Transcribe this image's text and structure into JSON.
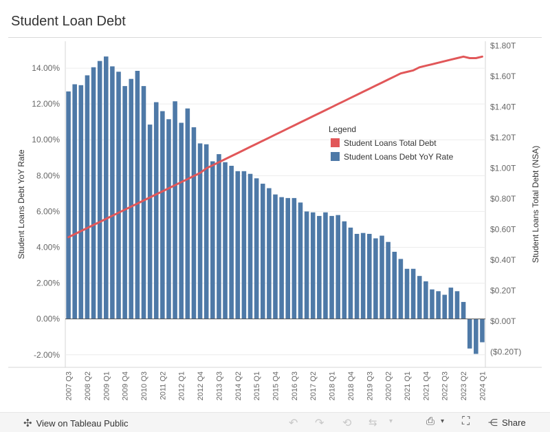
{
  "page": {
    "title": "Student Loan Debt"
  },
  "chart_data": {
    "type": "bar",
    "title": "Student Loan Debt",
    "categories": [
      "2007 Q3",
      "2007 Q4",
      "2008 Q1",
      "2008 Q2",
      "2008 Q3",
      "2008 Q4",
      "2009 Q1",
      "2009 Q2",
      "2009 Q3",
      "2009 Q4",
      "2010 Q1",
      "2010 Q2",
      "2010 Q3",
      "2010 Q4",
      "2011 Q1",
      "2011 Q2",
      "2011 Q3",
      "2011 Q4",
      "2012 Q1",
      "2012 Q2",
      "2012 Q3",
      "2012 Q4",
      "2013 Q1",
      "2013 Q2",
      "2013 Q3",
      "2013 Q4",
      "2014 Q1",
      "2014 Q2",
      "2014 Q3",
      "2014 Q4",
      "2015 Q1",
      "2015 Q2",
      "2015 Q3",
      "2015 Q4",
      "2016 Q1",
      "2016 Q2",
      "2016 Q3",
      "2016 Q4",
      "2017 Q1",
      "2017 Q2",
      "2017 Q3",
      "2017 Q4",
      "2018 Q1",
      "2018 Q2",
      "2018 Q3",
      "2018 Q4",
      "2019 Q1",
      "2019 Q2",
      "2019 Q3",
      "2019 Q4",
      "2020 Q1",
      "2020 Q2",
      "2020 Q3",
      "2020 Q4",
      "2021 Q1",
      "2021 Q2",
      "2021 Q3",
      "2021 Q4",
      "2022 Q1",
      "2022 Q2",
      "2022 Q3",
      "2022 Q4",
      "2023 Q1",
      "2023 Q2",
      "2023 Q3",
      "2023 Q4",
      "2024 Q1"
    ],
    "x_tick_labels": [
      "2007 Q3",
      "2008 Q2",
      "2009 Q1",
      "2009 Q4",
      "2010 Q3",
      "2011 Q2",
      "2012 Q1",
      "2012 Q4",
      "2013 Q3",
      "2014 Q2",
      "2015 Q1",
      "2015 Q4",
      "2016 Q3",
      "2017 Q2",
      "2018 Q1",
      "2018 Q4",
      "2019 Q3",
      "2020 Q2",
      "2021 Q1",
      "2021 Q4",
      "2022 Q3",
      "2023 Q2",
      "2024 Q1"
    ],
    "series": [
      {
        "name": "Student Loans Debt YoY Rate",
        "type": "bar",
        "axis": "left",
        "color": "#4e79a7",
        "values": [
          12.7,
          13.1,
          13.05,
          13.6,
          14.05,
          14.4,
          14.65,
          14.1,
          13.8,
          13.0,
          13.4,
          13.85,
          13.0,
          10.85,
          12.1,
          11.6,
          11.15,
          12.15,
          10.95,
          11.75,
          10.7,
          9.8,
          9.75,
          8.8,
          9.2,
          8.75,
          8.55,
          8.25,
          8.25,
          8.1,
          7.85,
          7.55,
          7.3,
          6.95,
          6.8,
          6.75,
          6.75,
          6.5,
          6.0,
          5.95,
          5.75,
          5.95,
          5.75,
          5.8,
          5.45,
          5.1,
          4.75,
          4.8,
          4.75,
          4.5,
          4.65,
          4.3,
          3.75,
          3.35,
          2.8,
          2.8,
          2.4,
          2.1,
          1.65,
          1.55,
          1.35,
          1.75,
          1.55,
          0.95,
          -1.65,
          -1.95,
          -1.3
        ]
      },
      {
        "name": "Student Loans Total Debt",
        "type": "line",
        "axis": "right",
        "color": "#e15759",
        "values": [
          0.55,
          0.57,
          0.59,
          0.61,
          0.63,
          0.65,
          0.67,
          0.69,
          0.71,
          0.73,
          0.75,
          0.77,
          0.79,
          0.81,
          0.83,
          0.85,
          0.87,
          0.89,
          0.91,
          0.93,
          0.95,
          0.97,
          1.0,
          1.02,
          1.04,
          1.06,
          1.08,
          1.1,
          1.12,
          1.14,
          1.16,
          1.18,
          1.2,
          1.22,
          1.24,
          1.26,
          1.28,
          1.3,
          1.32,
          1.34,
          1.36,
          1.38,
          1.4,
          1.42,
          1.44,
          1.46,
          1.48,
          1.5,
          1.52,
          1.54,
          1.56,
          1.58,
          1.6,
          1.62,
          1.63,
          1.64,
          1.66,
          1.67,
          1.68,
          1.69,
          1.7,
          1.71,
          1.72,
          1.73,
          1.72,
          1.72,
          1.73
        ]
      }
    ],
    "y_left": {
      "label": "Student Loans Debt YoY Rate",
      "ylim": [
        -2.7,
        15.5
      ],
      "ticks": [
        -2,
        0,
        2,
        4,
        6,
        8,
        10,
        12,
        14
      ],
      "tick_labels": [
        "-2.00%",
        "0.00%",
        "2.00%",
        "4.00%",
        "6.00%",
        "8.00%",
        "10.00%",
        "12.00%",
        "14.00%"
      ]
    },
    "y_right": {
      "label": "Student Loans Total Debt (NSA)",
      "ylim": [
        -0.3,
        1.83
      ],
      "ticks": [
        -0.2,
        0,
        0.2,
        0.4,
        0.6,
        0.8,
        1.0,
        1.2,
        1.4,
        1.6,
        1.8
      ],
      "tick_labels": [
        "($0.20T)",
        "$0.00T",
        "$0.20T",
        "$0.40T",
        "$0.60T",
        "$0.80T",
        "$1.00T",
        "$1.20T",
        "$1.40T",
        "$1.60T",
        "$1.80T"
      ]
    },
    "legend": {
      "title": "Legend",
      "position": "inside-right",
      "items": [
        {
          "label": "Student Loans Total Debt",
          "color": "#e15759"
        },
        {
          "label": "Student Loans Debt YoY Rate",
          "color": "#4e79a7"
        }
      ]
    },
    "grid": true
  },
  "toolbar": {
    "view_label": "View on Tableau Public",
    "share_label": "Share",
    "icons": [
      "tableau-icon",
      "undo-icon",
      "redo-icon",
      "revert-icon",
      "pause-icon",
      "download-icon",
      "fullscreen-icon",
      "share-icon"
    ]
  }
}
